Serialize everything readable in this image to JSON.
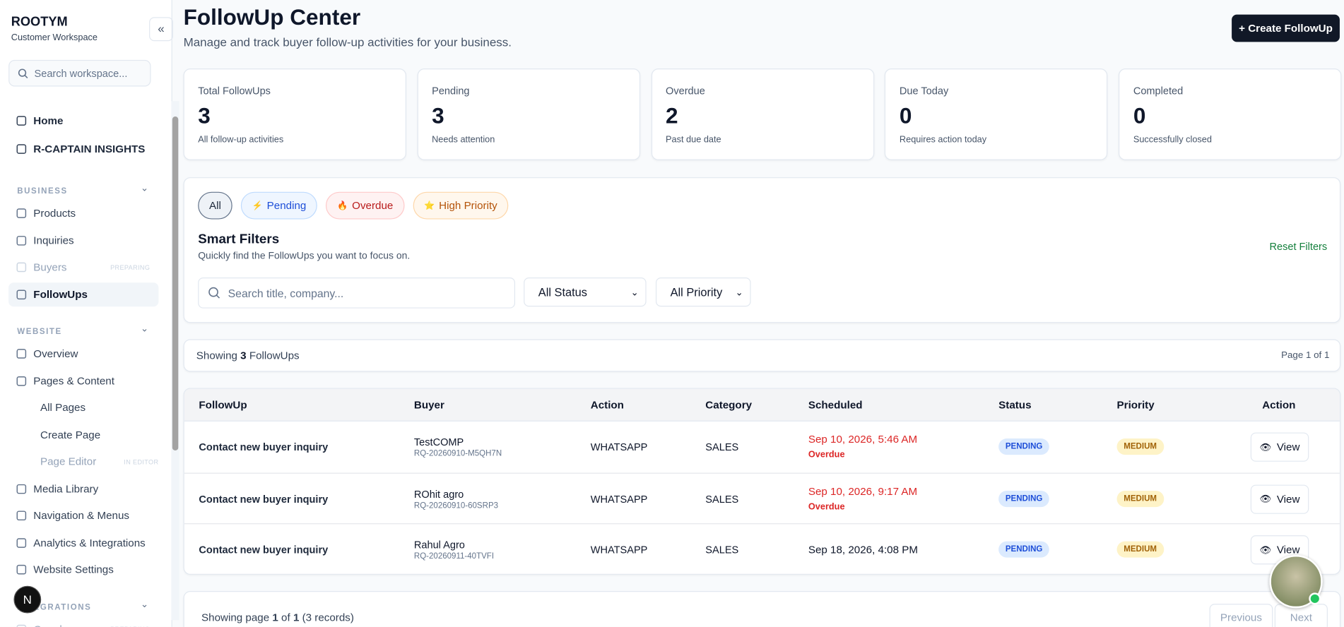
{
  "sidebar": {
    "brand": "ROOTYM",
    "workspace": "Customer Workspace",
    "search_placeholder": "Search workspace...",
    "top_items": [
      "Home",
      "R-CAPTAIN INSIGHTS"
    ],
    "sections": [
      {
        "title": "BUSINESS",
        "items": [
          {
            "label": "Products"
          },
          {
            "label": "Inquiries"
          },
          {
            "label": "Buyers",
            "badge": "PREPARING"
          },
          {
            "label": "FollowUps"
          }
        ]
      },
      {
        "title": "WEBSITE",
        "items": [
          {
            "label": "Overview"
          },
          {
            "label": "Pages & Content",
            "children": [
              {
                "label": "All Pages"
              },
              {
                "label": "Create Page"
              },
              {
                "label": "Page Editor",
                "badge": "IN EDITOR"
              }
            ]
          },
          {
            "label": "Media Library"
          },
          {
            "label": "Navigation & Menus"
          },
          {
            "label": "Analytics & Integrations"
          },
          {
            "label": "Website Settings"
          }
        ]
      },
      {
        "title": "INTEGRATIONS",
        "items": [
          {
            "label": "Google",
            "badge": "PREPARING"
          }
        ]
      }
    ],
    "avatar": "N"
  },
  "header": {
    "title": "FollowUp Center",
    "subtitle": "Manage and track buyer follow-up activities for your business.",
    "create_button": "+ Create FollowUp"
  },
  "stats": [
    {
      "label": "Total FollowUps",
      "value": 3,
      "note": "All follow-up activities"
    },
    {
      "label": "Pending",
      "value": 3,
      "note": "Needs attention"
    },
    {
      "label": "Overdue",
      "value": 2,
      "note": "Past due date"
    },
    {
      "label": "Due Today",
      "value": 0,
      "note": "Requires action today"
    },
    {
      "label": "Completed",
      "value": 0,
      "note": "Successfully closed"
    }
  ],
  "filters": {
    "chips": [
      "All",
      "Pending",
      "Overdue",
      "High Priority"
    ],
    "title": "Smart Filters",
    "subtitle": "Quickly find the FollowUps you want to focus on.",
    "reset": "Reset Filters",
    "search_placeholder": "Search title, company...",
    "status_select": "All Status",
    "priority_select": "All Priority"
  },
  "summary": {
    "prefix": "Showing",
    "count": 3,
    "suffix": "FollowUps",
    "page": "Page 1 of 1"
  },
  "table": {
    "columns": [
      "FollowUp",
      "Buyer",
      "Action",
      "Category",
      "Scheduled",
      "Status",
      "Priority",
      "Action"
    ],
    "rows": [
      {
        "title": "Contact new buyer inquiry",
        "buyer": "TestCOMP",
        "buyer_id": "RQ-20260910-M5QH7N",
        "action": "WHATSAPP",
        "category": "SALES",
        "scheduled": "Sep 10, 2026, 5:46 AM",
        "note": "Overdue",
        "status": "PENDING",
        "priority": "MEDIUM",
        "button": "View"
      },
      {
        "title": "Contact new buyer inquiry",
        "buyer": "ROhit agro",
        "buyer_id": "RQ-20260910-60SRP3",
        "action": "WHATSAPP",
        "category": "SALES",
        "scheduled": "Sep 10, 2026, 9:17 AM",
        "note": "Overdue",
        "status": "PENDING",
        "priority": "MEDIUM",
        "button": "View"
      },
      {
        "title": "Contact new buyer inquiry",
        "buyer": "Rahul Agro",
        "buyer_id": "RQ-20260911-40TVFI",
        "action": "WHATSAPP",
        "category": "SALES",
        "scheduled": "Sep 18, 2026, 4:08 PM",
        "status": "PENDING",
        "priority": "MEDIUM",
        "button": "View"
      }
    ]
  },
  "pagination": {
    "prefix": "Showing page",
    "page": 1,
    "of": "of",
    "total": 1,
    "records": "(3 records)",
    "previous": "Previous",
    "next": "Next"
  }
}
